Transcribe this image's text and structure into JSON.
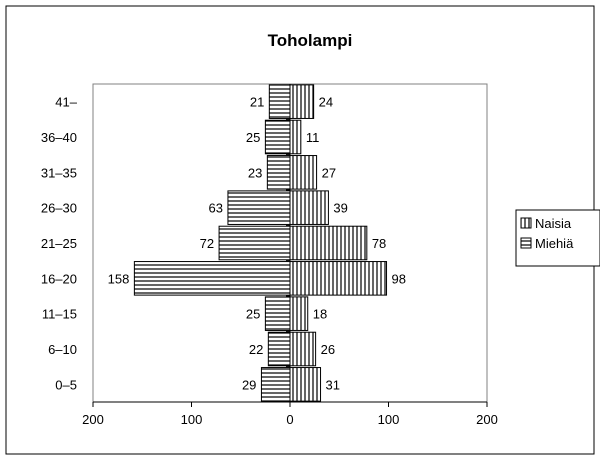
{
  "chart_data": {
    "type": "bar",
    "orientation": "horizontal",
    "subtype": "population-pyramid",
    "title": "Toholampi",
    "categories": [
      "0–5",
      "6–10",
      "11–15",
      "16–20",
      "21–25",
      "26–30",
      "31–35",
      "36–40",
      "41–"
    ],
    "series": [
      {
        "name": "Naisia",
        "side": "right",
        "pattern": "vertical-lines",
        "values": [
          31,
          26,
          18,
          98,
          78,
          39,
          27,
          11,
          24
        ]
      },
      {
        "name": "Miehiä",
        "side": "left",
        "pattern": "horizontal-lines",
        "values": [
          29,
          22,
          25,
          158,
          72,
          63,
          23,
          25,
          21
        ]
      }
    ],
    "xlim": [
      -200,
      200
    ],
    "xticks": [
      -200,
      -100,
      0,
      100,
      200
    ],
    "xtick_labels": [
      "200",
      "100",
      "0",
      "100",
      "200"
    ],
    "xlabel": "",
    "ylabel": "",
    "grid": false,
    "legend_position": "right",
    "data_labels": true,
    "colors": {
      "fill": "#ffffff",
      "stroke": "#000000",
      "plot_border": "#808080"
    }
  }
}
